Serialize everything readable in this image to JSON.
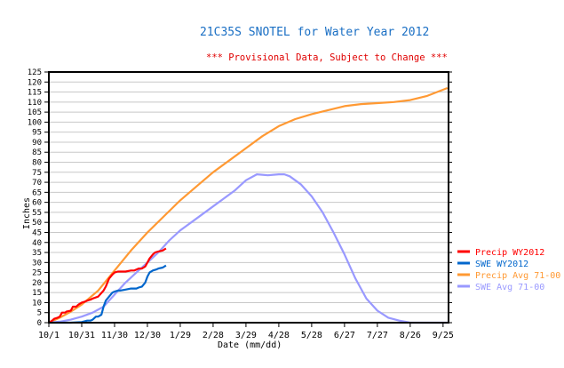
{
  "chart_data": {
    "type": "line",
    "title": "21C35S SNOTEL for Water Year 2012",
    "subtitle": "*** Provisional Data, Subject to Change ***",
    "xlabel": "Date (mm/dd)",
    "ylabel": "Inches",
    "ylim": [
      0,
      125
    ],
    "yticks": [
      0,
      5,
      10,
      15,
      20,
      25,
      30,
      35,
      40,
      45,
      50,
      55,
      60,
      65,
      70,
      75,
      80,
      85,
      90,
      95,
      100,
      105,
      110,
      115,
      120,
      125
    ],
    "xlim_days": [
      0,
      365
    ],
    "xticks": [
      {
        "day": 0,
        "label": "10/1"
      },
      {
        "day": 30,
        "label": "10/31"
      },
      {
        "day": 60,
        "label": "11/30"
      },
      {
        "day": 90,
        "label": "12/30"
      },
      {
        "day": 120,
        "label": "1/29"
      },
      {
        "day": 150,
        "label": "2/28"
      },
      {
        "day": 180,
        "label": "3/29"
      },
      {
        "day": 210,
        "label": "4/28"
      },
      {
        "day": 240,
        "label": "5/28"
      },
      {
        "day": 270,
        "label": "6/27"
      },
      {
        "day": 300,
        "label": "7/27"
      },
      {
        "day": 330,
        "label": "8/26"
      },
      {
        "day": 360,
        "label": "9/25"
      }
    ],
    "grid": true,
    "legend_position": "right",
    "series": [
      {
        "name": "Precip WY2012",
        "color": "#ff0000",
        "x": [
          0,
          3,
          5,
          8,
          10,
          12,
          15,
          16,
          20,
          22,
          25,
          27,
          30,
          33,
          35,
          38,
          40,
          45,
          50,
          52,
          55,
          58,
          60,
          63,
          65,
          70,
          75,
          78,
          80,
          82,
          85,
          88,
          90,
          92,
          95,
          97,
          100,
          104,
          107
        ],
        "y": [
          0,
          1,
          2,
          2.5,
          3,
          5,
          5,
          5.5,
          6,
          8,
          8,
          9,
          10,
          10.5,
          11,
          11.5,
          12,
          13,
          16,
          18,
          22,
          24,
          25,
          25.5,
          25.5,
          25.5,
          26,
          26,
          26.5,
          27,
          27,
          28,
          30,
          32,
          34,
          35,
          35.5,
          36,
          37
        ]
      },
      {
        "name": "SWE WY2012",
        "color": "#0066cc",
        "x": [
          0,
          10,
          20,
          30,
          35,
          38,
          40,
          43,
          45,
          48,
          50,
          52,
          55,
          58,
          60,
          63,
          65,
          70,
          75,
          78,
          80,
          82,
          85,
          88,
          90,
          92,
          95,
          98,
          100,
          104,
          107
        ],
        "y": [
          0,
          0,
          0,
          0.3,
          1,
          1,
          1.5,
          3,
          3,
          4,
          8,
          11,
          13,
          15,
          15.5,
          16,
          16,
          16.5,
          17,
          17,
          17,
          17.5,
          18,
          20,
          23,
          25,
          26,
          26.5,
          27,
          27.5,
          28.5
        ]
      },
      {
        "name": "Precip Avg 71-00",
        "color": "#ff9933",
        "x": [
          0,
          10,
          20,
          30,
          45,
          60,
          75,
          90,
          105,
          120,
          135,
          150,
          165,
          180,
          195,
          210,
          225,
          240,
          255,
          270,
          285,
          300,
          315,
          330,
          345,
          364
        ],
        "y": [
          0,
          2.5,
          5.5,
          9,
          16,
          26,
          36,
          45,
          53,
          61,
          68,
          75,
          81,
          87,
          93,
          98,
          101.5,
          104,
          106,
          108,
          109,
          109.5,
          110,
          111,
          113,
          117
        ]
      },
      {
        "name": "SWE Avg 71-00",
        "color": "#9999ff",
        "x": [
          0,
          10,
          20,
          30,
          40,
          50,
          60,
          70,
          80,
          90,
          100,
          110,
          120,
          130,
          140,
          150,
          160,
          170,
          180,
          190,
          200,
          210,
          215,
          220,
          230,
          240,
          250,
          260,
          270,
          280,
          290,
          300,
          310,
          320,
          330,
          340,
          350,
          364
        ],
        "y": [
          0,
          0.5,
          1.5,
          3,
          5,
          8,
          14,
          20,
          25,
          30,
          35,
          41,
          46,
          50,
          54,
          58,
          62,
          66,
          71,
          74,
          73.5,
          74,
          74,
          73,
          69,
          63,
          55,
          45,
          34,
          22,
          12,
          6,
          2.5,
          1,
          0,
          0,
          0,
          0
        ]
      }
    ]
  }
}
